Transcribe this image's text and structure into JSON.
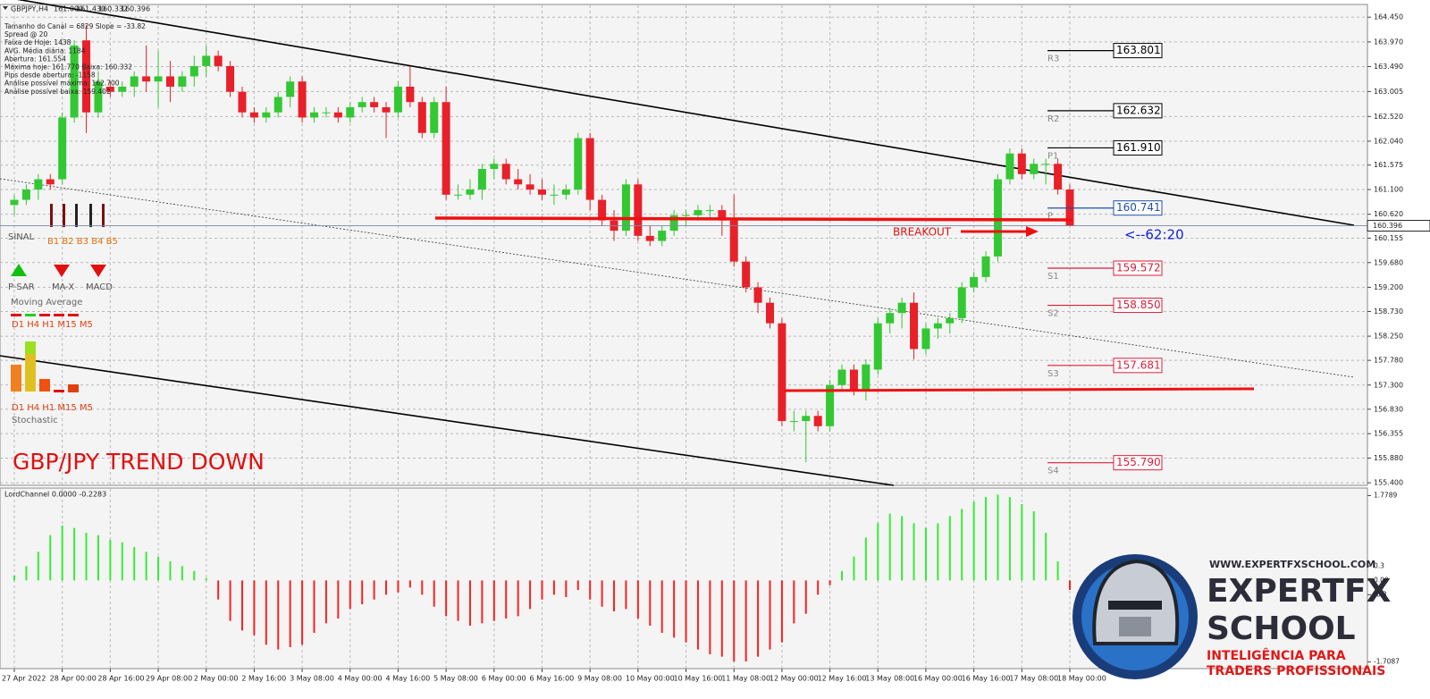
{
  "chart_data": [
    {
      "type": "candlestick",
      "title": "GBPJPY,H4",
      "header_ohlc": [
        {
          "value": 161.0,
          "label": "161.000"
        },
        {
          "value": 161.43,
          "label": "161.430"
        },
        160.332,
        160.396
      ],
      "info_lines": [
        "Tamanho do Canal = 6829 Slope = -33.82",
        "Spread @ 20",
        "Faixa de Hoje: 1438",
        "AVG. Média diária: 1184",
        "Abertura: 161.554",
        "Máxima hoje: 161.770 Baixa: 160.332",
        "Pips desde abertura: -1158",
        "Análise possível máxima: 162.700",
        "Análise possível baixa: 159.402"
      ],
      "categories": [
        "27 Apr 2022",
        null,
        null,
        null,
        "28 Apr 00:00",
        null,
        null,
        null,
        "28 Apr 16:00",
        null,
        null,
        null,
        "29 Apr 08:00",
        null,
        null,
        null,
        "2 May 00:00",
        null,
        null,
        null,
        "2 May 16:00",
        null,
        null,
        null,
        "3 May 08:00",
        null,
        null,
        null,
        "4 May 00:00",
        null,
        null,
        null,
        "4 May 16:00",
        null,
        null,
        null,
        "5 May 08:00",
        null,
        null,
        null,
        "6 May 00:00",
        null,
        null,
        null,
        "6 May 16:00",
        null,
        null,
        null,
        "9 May 08:00",
        null,
        null,
        null,
        "10 May 00:00",
        null,
        null,
        null,
        "10 May 16:00",
        null,
        null,
        null,
        "11 May 08:00",
        null,
        null,
        null,
        "12 May 00:00",
        null,
        null,
        null,
        "12 May 16:00",
        null,
        null,
        null,
        "13 May 08:00",
        null,
        null,
        null,
        "16 May 00:00",
        null,
        null,
        null,
        "16 May 16:00",
        null,
        null,
        null,
        "17 May 08:00",
        null,
        null,
        null,
        "18 May 00:00"
      ],
      "ohlc": [
        [
          160.8,
          161.0,
          160.6,
          160.9
        ],
        [
          160.9,
          161.2,
          160.8,
          161.1
        ],
        [
          161.1,
          161.4,
          160.9,
          161.3
        ],
        [
          161.3,
          161.4,
          161.1,
          161.2
        ],
        [
          161.3,
          162.6,
          161.2,
          162.5
        ],
        [
          162.5,
          164.0,
          162.4,
          163.9
        ],
        [
          164.0,
          164.3,
          162.2,
          162.6
        ],
        [
          162.6,
          163.4,
          162.5,
          163.2
        ],
        [
          163.1,
          163.2,
          162.9,
          163.0
        ],
        [
          163.0,
          163.2,
          162.9,
          163.1
        ],
        [
          163.1,
          163.4,
          162.9,
          163.3
        ],
        [
          163.3,
          163.9,
          163.0,
          163.2
        ],
        [
          163.2,
          163.8,
          162.7,
          163.3
        ],
        [
          163.3,
          163.6,
          162.8,
          163.1
        ],
        [
          163.1,
          163.4,
          163.0,
          163.3
        ],
        [
          163.3,
          163.7,
          163.1,
          163.5
        ],
        [
          163.5,
          163.9,
          163.3,
          163.7
        ],
        [
          163.7,
          163.8,
          163.4,
          163.5
        ],
        [
          163.5,
          163.6,
          162.9,
          163.0
        ],
        [
          163.0,
          163.1,
          162.5,
          162.6
        ],
        [
          162.6,
          162.7,
          162.4,
          162.5
        ],
        [
          162.5,
          162.7,
          162.4,
          162.6
        ],
        [
          162.6,
          163.0,
          162.5,
          162.9
        ],
        [
          162.9,
          163.3,
          162.7,
          163.2
        ],
        [
          163.2,
          163.3,
          162.4,
          162.5
        ],
        [
          162.5,
          162.7,
          162.4,
          162.6
        ],
        [
          162.6,
          162.7,
          162.5,
          162.6
        ],
        [
          162.6,
          162.7,
          162.4,
          162.5
        ],
        [
          162.5,
          162.8,
          162.4,
          162.7
        ],
        [
          162.7,
          162.9,
          162.6,
          162.8
        ],
        [
          162.8,
          162.9,
          162.6,
          162.7
        ],
        [
          162.7,
          162.8,
          162.1,
          162.6
        ],
        [
          162.6,
          163.2,
          162.5,
          163.1
        ],
        [
          163.1,
          163.5,
          162.7,
          162.8
        ],
        [
          162.8,
          162.9,
          162.1,
          162.2
        ],
        [
          162.2,
          162.9,
          162.1,
          162.8
        ],
        [
          162.8,
          163.1,
          160.9,
          161.0
        ],
        [
          161.0,
          161.2,
          160.9,
          161.0
        ],
        [
          161.0,
          161.3,
          160.9,
          161.1
        ],
        [
          161.1,
          161.6,
          160.9,
          161.5
        ],
        [
          161.5,
          161.7,
          161.3,
          161.6
        ],
        [
          161.6,
          161.7,
          161.2,
          161.3
        ],
        [
          161.3,
          161.5,
          161.1,
          161.2
        ],
        [
          161.2,
          161.4,
          161.0,
          161.1
        ],
        [
          161.1,
          161.3,
          160.9,
          161.0
        ],
        [
          161.0,
          161.2,
          160.8,
          161.0
        ],
        [
          161.0,
          161.2,
          160.9,
          161.1
        ],
        [
          161.1,
          162.2,
          161.0,
          162.1
        ],
        [
          162.1,
          162.2,
          160.7,
          160.9
        ],
        [
          160.9,
          161.0,
          160.4,
          160.5
        ],
        [
          160.5,
          160.7,
          160.1,
          160.3
        ],
        [
          160.3,
          161.3,
          160.2,
          161.2
        ],
        [
          161.2,
          161.3,
          160.1,
          160.2
        ],
        [
          160.2,
          160.4,
          160.0,
          160.1
        ],
        [
          160.1,
          160.4,
          160.0,
          160.3
        ],
        [
          160.3,
          160.7,
          160.2,
          160.6
        ],
        [
          160.6,
          160.7,
          160.4,
          160.6
        ],
        [
          160.6,
          160.8,
          160.5,
          160.7
        ],
        [
          160.7,
          160.8,
          160.5,
          160.7
        ],
        [
          160.7,
          160.8,
          160.2,
          160.5
        ],
        [
          160.5,
          161.0,
          159.6,
          159.7
        ],
        [
          159.7,
          159.8,
          159.1,
          159.2
        ],
        [
          159.2,
          159.3,
          158.7,
          158.9
        ],
        [
          158.9,
          159.0,
          158.4,
          158.5
        ],
        [
          158.5,
          158.6,
          156.5,
          156.6
        ],
        [
          156.6,
          156.8,
          156.4,
          156.6
        ],
        [
          156.6,
          156.8,
          155.8,
          156.7
        ],
        [
          156.7,
          156.8,
          156.4,
          156.5
        ],
        [
          156.5,
          157.4,
          156.4,
          157.3
        ],
        [
          157.3,
          157.7,
          157.2,
          157.6
        ],
        [
          157.6,
          157.7,
          157.1,
          157.2
        ],
        [
          157.2,
          157.8,
          157.0,
          157.7
        ],
        [
          157.6,
          158.6,
          157.5,
          158.5
        ],
        [
          158.5,
          158.8,
          158.3,
          158.7
        ],
        [
          158.7,
          159.0,
          158.4,
          158.9
        ],
        [
          158.9,
          159.1,
          157.8,
          158.0
        ],
        [
          158.0,
          158.5,
          157.9,
          158.4
        ],
        [
          158.4,
          158.6,
          158.2,
          158.5
        ],
        [
          158.5,
          158.7,
          158.3,
          158.6
        ],
        [
          158.6,
          159.3,
          158.5,
          159.2
        ],
        [
          159.2,
          159.5,
          159.1,
          159.4
        ],
        [
          159.4,
          159.9,
          159.3,
          159.8
        ],
        [
          159.8,
          161.4,
          159.7,
          161.3
        ],
        [
          161.3,
          161.9,
          161.2,
          161.8
        ],
        [
          161.8,
          161.9,
          161.3,
          161.4
        ],
        [
          161.4,
          161.7,
          161.3,
          161.6
        ],
        [
          161.6,
          161.7,
          161.2,
          161.6
        ],
        [
          161.6,
          161.7,
          161.0,
          161.1
        ],
        [
          161.1,
          161.2,
          160.4,
          160.4
        ]
      ],
      "up_color": "#33c833",
      "down_color": "#e8202a",
      "ylim": [
        155.35,
        164.68
      ],
      "yticks": [
        {
          "value": 164.45,
          "label": "164.450"
        },
        {
          "value": 163.97,
          "label": "163.970"
        },
        {
          "value": 163.49,
          "label": "163.490"
        },
        163.005,
        {
          "value": 162.52,
          "label": "162.520"
        },
        {
          "value": 162.04,
          "label": "162.040"
        },
        161.575,
        {
          "value": 161.1,
          "label": "161.100"
        },
        {
          "value": 160.62,
          "label": "160.620"
        },
        160.155,
        {
          "value": 159.68,
          "label": "159.680"
        },
        {
          "value": 159.2,
          "label": "159.200"
        },
        {
          "value": 158.73,
          "label": "158.730"
        },
        {
          "value": 158.25,
          "label": "158.250"
        },
        {
          "value": 157.78,
          "label": "157.780"
        },
        {
          "value": 157.3,
          "label": "157.300"
        },
        {
          "value": 156.83,
          "label": "156.830"
        },
        156.355,
        {
          "value": 155.88,
          "label": "155.880"
        },
        {
          "value": 155.4,
          "label": "155.400"
        }
      ],
      "grid": true,
      "current_price": 160.396,
      "levels": [
        {
          "name": "R3",
          "value": 163.801,
          "color": "#000000"
        },
        {
          "name": "R2",
          "value": 162.632,
          "color": "#000000"
        },
        {
          "name": "P1",
          "value": 161.91,
          "label": "161.910",
          "color": "#000000"
        },
        {
          "name": "P",
          "value": 160.741,
          "color": "#1f4fa8"
        },
        {
          "name": "S1",
          "value": 159.572,
          "color": "#d8203a"
        },
        {
          "name": "S2",
          "value": 158.85,
          "label": "158.850",
          "color": "#d8203a"
        },
        {
          "name": "S3",
          "value": 157.681,
          "color": "#d8203a"
        },
        {
          "name": "S4",
          "value": 155.79,
          "label": "155.790",
          "color": "#d8203a"
        }
      ],
      "annotations": {
        "breakout": "BREAKOUT",
        "timer": "<--62:20",
        "trend": "GBP/JPY TREND DOWN"
      }
    },
    {
      "type": "histogram-bar",
      "title": "LordChannel 0.0000 -0.2283",
      "values": [
        0.1,
        0.3,
        0.6,
        0.95,
        1.15,
        1.1,
        1.0,
        0.95,
        0.85,
        0.8,
        0.7,
        0.6,
        0.5,
        0.4,
        0.3,
        0.2,
        0.05,
        -0.4,
        -0.85,
        -1.05,
        -1.15,
        -1.35,
        -1.45,
        -1.4,
        -1.35,
        -1.1,
        -0.9,
        -0.8,
        -0.6,
        -0.5,
        -0.4,
        -0.3,
        -0.25,
        -0.15,
        -0.3,
        -0.55,
        -0.75,
        -0.85,
        -0.95,
        -0.9,
        -0.85,
        -0.8,
        -0.75,
        -0.6,
        -0.4,
        -0.3,
        -0.35,
        -0.2,
        -0.4,
        -0.55,
        -0.65,
        -0.6,
        -0.8,
        -0.95,
        -1.1,
        -1.2,
        -1.3,
        -1.45,
        -1.55,
        -1.6,
        -1.7,
        -1.7,
        -1.6,
        -1.45,
        -1.3,
        -0.9,
        -0.7,
        -0.3,
        -0.1,
        0.2,
        0.5,
        0.9,
        1.2,
        1.4,
        1.35,
        1.2,
        1.1,
        1.2,
        1.35,
        1.5,
        1.65,
        1.75,
        1.8,
        1.75,
        1.6,
        1.45,
        1.0,
        0.4,
        -0.2
      ],
      "up_color": "#33ee33",
      "down_color": "#ff2020",
      "ylim": [
        -1.85,
        1.9
      ],
      "yticks": [
        1.7789,
        0.3,
        {
          "value": 0,
          "label": "0.00"
        },
        -0.3,
        -1.7087
      ]
    }
  ],
  "indicator_panel": {
    "signal": "SINAL",
    "buffers": "B1 B2 B3 B4 B5",
    "psar": "P-SAR",
    "max": "MA-X",
    "macd": "MACD",
    "moving_average": "Moving Average",
    "ma_frames": "D1 H4 H1 M15  M5",
    "stochastic": "Stochastic",
    "stoch_frames": "D1 H4 H1 M15  M5"
  },
  "logo": {
    "url": "WWW.EXPERTFXSCHOOL.COM",
    "line1": "EXPERTFX",
    "line2": "SCHOOL",
    "tag1": "INTELIGÊNCIA PARA",
    "tag2": "TRADERS PROFISSIONAIS"
  }
}
